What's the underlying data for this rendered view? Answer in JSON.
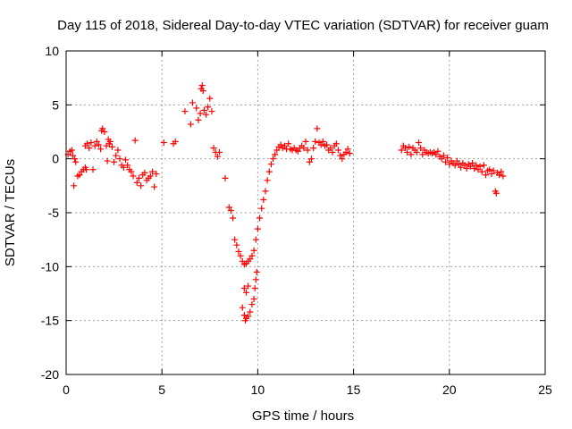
{
  "chart_data": {
    "type": "scatter",
    "title": "Day 115 of 2018, Sidereal Day-to-day VTEC variation (SDTVAR) for receiver guam",
    "xlabel": "GPS time / hours",
    "ylabel": "SDTVAR / TECUs",
    "xlim": [
      0,
      25
    ],
    "ylim": [
      -20,
      10
    ],
    "x_ticks": [
      0,
      5,
      10,
      15,
      20,
      25
    ],
    "y_ticks": [
      -20,
      -15,
      -10,
      -5,
      0,
      5,
      10
    ],
    "x_tick_labels": [
      "0",
      "5",
      "10",
      "15",
      "20",
      "25"
    ],
    "y_tick_labels": [
      "-20",
      "-15",
      "-10",
      "-5",
      "0",
      "5",
      "10"
    ],
    "grid": true,
    "marker": "plus",
    "color": "#ff0000",
    "series": [
      {
        "name": "SDTVAR",
        "segments": [
          [
            0.1,
            0.4
          ],
          [
            0.2,
            0.7
          ],
          [
            0.3,
            0.8
          ],
          [
            0.35,
            0.3
          ],
          [
            0.4,
            -2.5
          ],
          [
            0.45,
            0.0
          ],
          [
            0.5,
            -0.3
          ],
          [
            0.6,
            -1.6
          ],
          [
            0.7,
            -1.5
          ],
          [
            0.8,
            -1.2
          ],
          [
            0.9,
            -1.0
          ],
          [
            1.0,
            -0.8
          ],
          [
            1.05,
            -1.0
          ],
          [
            1.0,
            1.2
          ],
          [
            1.1,
            1.4
          ],
          [
            1.2,
            1.0
          ],
          [
            1.3,
            1.5
          ],
          [
            1.4,
            -1.0
          ],
          [
            1.5,
            1.2
          ],
          [
            1.6,
            1.6
          ],
          [
            1.7,
            1.3
          ],
          [
            1.8,
            0.9
          ],
          [
            1.85,
            2.6
          ],
          [
            1.9,
            2.8
          ],
          [
            2.0,
            2.5
          ],
          [
            2.1,
            1.2
          ],
          [
            2.15,
            -0.2
          ],
          [
            2.2,
            1.8
          ],
          [
            2.25,
            1.4
          ],
          [
            2.3,
            1.6
          ],
          [
            2.4,
            1.1
          ],
          [
            2.5,
            -0.3
          ],
          [
            2.6,
            0.3
          ],
          [
            2.7,
            0.8
          ],
          [
            2.8,
            0.0
          ],
          [
            2.9,
            -0.6
          ],
          [
            3.0,
            -0.8
          ],
          [
            3.1,
            -0.1
          ],
          [
            3.2,
            -0.6
          ],
          [
            3.3,
            -1.0
          ],
          [
            3.4,
            -1.2
          ],
          [
            3.5,
            -1.6
          ],
          [
            3.6,
            1.7
          ],
          [
            3.7,
            -2.2
          ],
          [
            3.8,
            -1.8
          ],
          [
            3.9,
            -2.5
          ],
          [
            4.0,
            -1.5
          ],
          [
            4.1,
            -1.3
          ],
          [
            4.2,
            -2.0
          ],
          [
            4.3,
            -1.8
          ],
          [
            4.4,
            -1.6
          ],
          [
            4.5,
            -1.2
          ],
          [
            4.6,
            -2.6
          ],
          [
            4.7,
            -1.4
          ],
          [
            5.1,
            1.5
          ],
          [
            5.6,
            1.4
          ],
          [
            5.7,
            1.6
          ],
          [
            6.2,
            4.4
          ],
          [
            6.5,
            3.2
          ],
          [
            6.6,
            5.2
          ],
          [
            6.8,
            4.7
          ],
          [
            6.9,
            3.6
          ],
          [
            7.0,
            4.2
          ],
          [
            7.05,
            6.5
          ],
          [
            7.1,
            6.8
          ],
          [
            7.15,
            6.3
          ],
          [
            7.2,
            4.5
          ],
          [
            7.3,
            4.1
          ],
          [
            7.4,
            4.8
          ],
          [
            7.5,
            5.6
          ],
          [
            7.6,
            4.4
          ],
          [
            7.7,
            1.0
          ],
          [
            7.8,
            0.6
          ],
          [
            7.9,
            0.2
          ],
          [
            8.0,
            0.6
          ],
          [
            8.3,
            -1.8
          ],
          [
            8.5,
            -4.5
          ],
          [
            8.6,
            -4.8
          ],
          [
            8.7,
            -5.5
          ],
          [
            8.8,
            -7.5
          ],
          [
            8.9,
            -8.0
          ],
          [
            9.0,
            -8.6
          ],
          [
            9.1,
            -9.0
          ],
          [
            9.2,
            -9.5
          ],
          [
            9.3,
            -9.8
          ],
          [
            9.4,
            -9.7
          ],
          [
            9.5,
            -9.5
          ],
          [
            9.6,
            -9.3
          ],
          [
            9.7,
            -9.0
          ],
          [
            9.8,
            -8.5
          ],
          [
            9.9,
            -7.5
          ],
          [
            10.0,
            -6.5
          ],
          [
            10.1,
            -5.5
          ],
          [
            10.2,
            -4.6
          ],
          [
            10.3,
            -3.8
          ],
          [
            10.4,
            -3.0
          ],
          [
            10.5,
            -2.0
          ],
          [
            10.6,
            -1.2
          ],
          [
            10.7,
            -0.5
          ],
          [
            10.8,
            0.0
          ],
          [
            10.9,
            0.4
          ],
          [
            11.0,
            0.8
          ],
          [
            11.1,
            1.1
          ],
          [
            11.2,
            1.3
          ],
          [
            11.3,
            1.0
          ],
          [
            11.4,
            1.2
          ],
          [
            11.5,
            0.9
          ],
          [
            11.6,
            1.4
          ],
          [
            11.7,
            0.9
          ],
          [
            11.8,
            0.8
          ],
          [
            11.9,
            1.0
          ],
          [
            12.0,
            0.8
          ],
          [
            12.1,
            0.7
          ],
          [
            12.2,
            1.0
          ],
          [
            12.3,
            1.2
          ],
          [
            12.4,
            1.0
          ],
          [
            12.5,
            1.6
          ],
          [
            12.6,
            0.8
          ],
          [
            12.7,
            -0.3
          ],
          [
            12.8,
            0.0
          ],
          [
            12.9,
            1.0
          ],
          [
            13.0,
            1.6
          ],
          [
            13.1,
            2.8
          ],
          [
            13.2,
            1.5
          ],
          [
            13.3,
            1.3
          ],
          [
            13.4,
            1.6
          ],
          [
            13.5,
            1.2
          ],
          [
            13.6,
            1.3
          ],
          [
            13.7,
            0.8
          ],
          [
            13.8,
            1.0
          ],
          [
            13.9,
            0.6
          ],
          [
            14.0,
            1.2
          ],
          [
            14.1,
            1.4
          ],
          [
            14.2,
            0.8
          ],
          [
            14.3,
            0.3
          ],
          [
            14.4,
            0.0
          ],
          [
            14.5,
            0.4
          ],
          [
            14.6,
            0.6
          ],
          [
            14.7,
            0.9
          ],
          [
            14.8,
            0.5
          ],
          [
            9.2,
            -13.8
          ],
          [
            9.3,
            -14.5
          ],
          [
            9.35,
            -15.0
          ],
          [
            9.4,
            -14.8
          ],
          [
            9.5,
            -14.6
          ],
          [
            9.6,
            -14.2
          ],
          [
            9.7,
            -13.5
          ],
          [
            9.8,
            -13.0
          ],
          [
            9.85,
            -12.0
          ],
          [
            9.9,
            -11.2
          ],
          [
            9.95,
            -10.5
          ],
          [
            9.3,
            -12.0
          ],
          [
            9.4,
            -12.4
          ],
          [
            9.5,
            -11.8
          ],
          [
            17.5,
            0.8
          ],
          [
            17.6,
            1.2
          ],
          [
            17.7,
            1.0
          ],
          [
            17.8,
            0.6
          ],
          [
            17.9,
            1.1
          ],
          [
            18.0,
            0.4
          ],
          [
            18.1,
            1.0
          ],
          [
            18.2,
            0.8
          ],
          [
            18.3,
            0.6
          ],
          [
            18.4,
            1.5
          ],
          [
            18.5,
            1.0
          ],
          [
            18.6,
            0.4
          ],
          [
            18.7,
            0.8
          ],
          [
            18.8,
            0.6
          ],
          [
            18.9,
            0.5
          ],
          [
            19.0,
            0.6
          ],
          [
            19.1,
            0.5
          ],
          [
            19.2,
            0.6
          ],
          [
            19.3,
            0.4
          ],
          [
            19.4,
            0.7
          ],
          [
            19.5,
            0.2
          ],
          [
            19.6,
            0.0
          ],
          [
            19.7,
            0.3
          ],
          [
            19.8,
            -0.3
          ],
          [
            19.9,
            0.1
          ],
          [
            20.0,
            -0.5
          ],
          [
            20.1,
            -0.2
          ],
          [
            20.2,
            -0.4
          ],
          [
            20.3,
            -0.6
          ],
          [
            20.4,
            -0.2
          ],
          [
            20.5,
            -0.5
          ],
          [
            20.6,
            -0.8
          ],
          [
            20.7,
            -0.4
          ],
          [
            20.8,
            -0.6
          ],
          [
            20.9,
            -0.9
          ],
          [
            21.0,
            -0.5
          ],
          [
            21.1,
            -0.7
          ],
          [
            21.2,
            -0.4
          ],
          [
            21.3,
            -0.9
          ],
          [
            21.4,
            -0.6
          ],
          [
            21.5,
            -1.0
          ],
          [
            21.6,
            -0.7
          ],
          [
            21.7,
            -1.2
          ],
          [
            21.8,
            -0.6
          ],
          [
            21.9,
            -1.5
          ],
          [
            22.0,
            -1.1
          ],
          [
            22.1,
            -1.0
          ],
          [
            22.2,
            -1.4
          ],
          [
            22.3,
            -1.1
          ],
          [
            22.4,
            -3.0
          ],
          [
            22.45,
            -3.2
          ],
          [
            22.5,
            -1.3
          ],
          [
            22.6,
            -1.5
          ],
          [
            22.7,
            -1.2
          ],
          [
            22.8,
            -1.6
          ]
        ]
      }
    ]
  }
}
